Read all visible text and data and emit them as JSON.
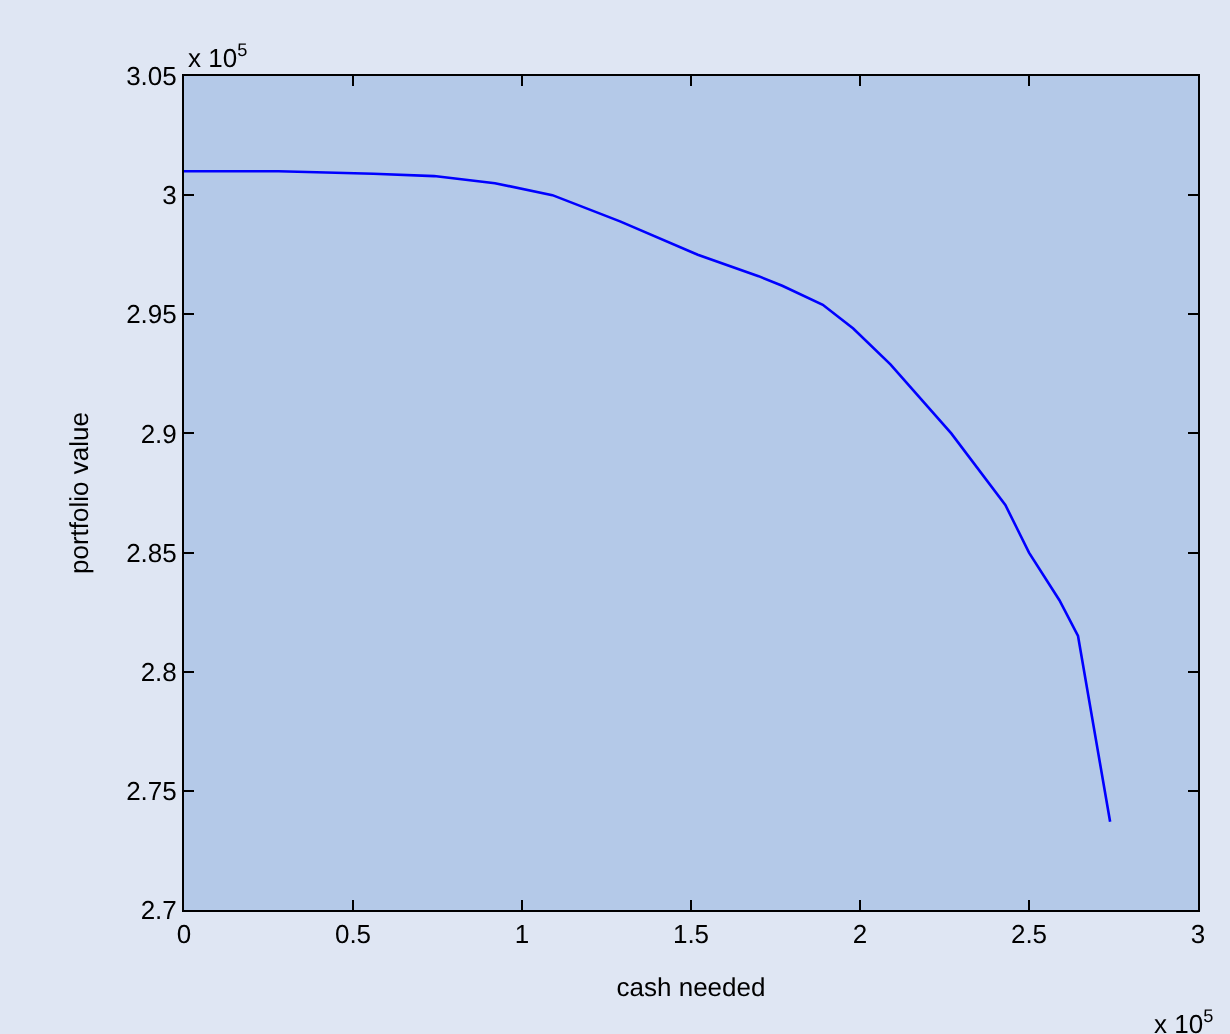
{
  "chart_data": {
    "type": "line",
    "xlabel": "cash needed",
    "ylabel": "portfolio value",
    "annotations": [
      "x 10$^{5}$",
      "x 10$^{5}$"
    ],
    "x": [
      0,
      0.28,
      0.56,
      0.74,
      0.92,
      1.09,
      1.29,
      1.52,
      1.7,
      1.77,
      1.89,
      1.98,
      2.09,
      2.27,
      2.43,
      2.5,
      2.59,
      2.645,
      2.74
    ],
    "series": [
      {
        "color": "#0000ff",
        "values": [
          3.01,
          3.01,
          3.009,
          3.008,
          3.005,
          3.0,
          2.989,
          2.975,
          2.966,
          2.962,
          2.954,
          2.944,
          2.929,
          2.9,
          2.87,
          2.85,
          2.83,
          2.815,
          2.737
        ]
      }
    ],
    "xlim": [
      0,
      3
    ],
    "xticks": [
      0,
      0.5,
      1,
      1.5,
      2,
      2.5,
      3
    ],
    "ylim": [
      2.7,
      3.05
    ],
    "yticks": [
      2.7,
      2.75,
      2.8,
      2.85,
      2.9,
      2.95,
      3,
      3.05
    ],
    "grid": false
  }
}
